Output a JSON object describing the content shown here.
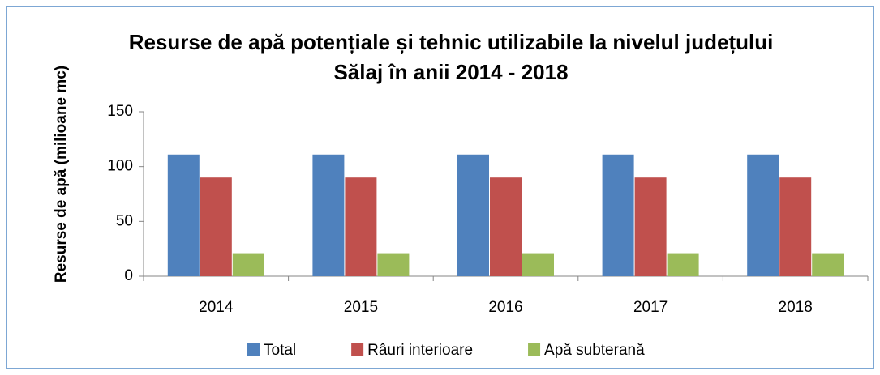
{
  "chart_data": {
    "type": "bar",
    "title": "Resurse de apă potențiale și tehnic utilizabile la nivelul județului Sălaj în anii 2014 - 2018",
    "y_label": "Resurse de apă (milioane mc)",
    "categories": [
      "2014",
      "2015",
      "2016",
      "2017",
      "2018"
    ],
    "series": [
      {
        "name": "Total",
        "color": "#4f81bd",
        "values": [
          111,
          111,
          111,
          111,
          111
        ]
      },
      {
        "name": "Râuri interioare",
        "color": "#c0504d",
        "values": [
          90,
          90,
          90,
          90,
          90
        ]
      },
      {
        "name": "Apă subterană",
        "color": "#9bbb59",
        "values": [
          21,
          21,
          21,
          21,
          21
        ]
      }
    ],
    "ylim": [
      0,
      150
    ],
    "yticks": [
      0,
      50,
      100,
      150
    ],
    "legend": "bottom"
  }
}
